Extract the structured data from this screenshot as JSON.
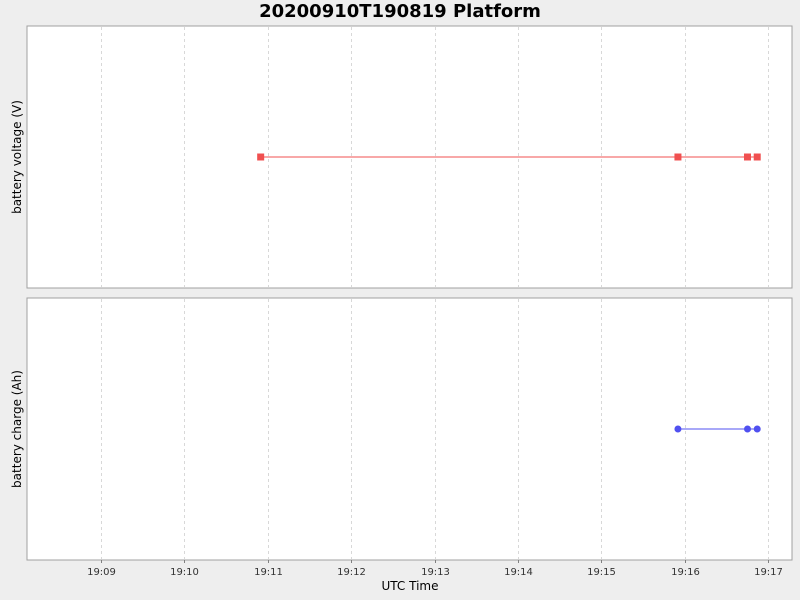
{
  "title": "20200910T190819 Platform",
  "chart_data": [
    {
      "type": "line",
      "ylabel": "battery voltage (V)",
      "xlabel": "",
      "x_ticks": [
        "19:09",
        "19:10",
        "19:11",
        "19:12",
        "19:13",
        "19:14",
        "19:15",
        "19:16",
        "19:17"
      ],
      "x_range": [
        "19:08:07",
        "19:17:17"
      ],
      "y_ticks": [],
      "grid": true,
      "series": [
        {
          "color": "#f05050",
          "marker": "square",
          "x": [
            "19:10:55",
            "19:15:55",
            "19:16:45",
            "19:16:52"
          ],
          "y": [
            0.5,
            0.5,
            0.5,
            0.5
          ]
        }
      ]
    },
    {
      "type": "line",
      "ylabel": "battery charge (Ah)",
      "xlabel": "UTC Time",
      "x_ticks": [
        "19:09",
        "19:10",
        "19:11",
        "19:12",
        "19:13",
        "19:14",
        "19:15",
        "19:16",
        "19:17"
      ],
      "x_range": [
        "19:08:07",
        "19:17:17"
      ],
      "y_ticks": [],
      "grid": true,
      "series": [
        {
          "color": "#5050f0",
          "marker": "circle",
          "x": [
            "19:15:55",
            "19:16:45",
            "19:16:52"
          ],
          "y": [
            0.5,
            0.5,
            0.5
          ]
        }
      ]
    }
  ]
}
